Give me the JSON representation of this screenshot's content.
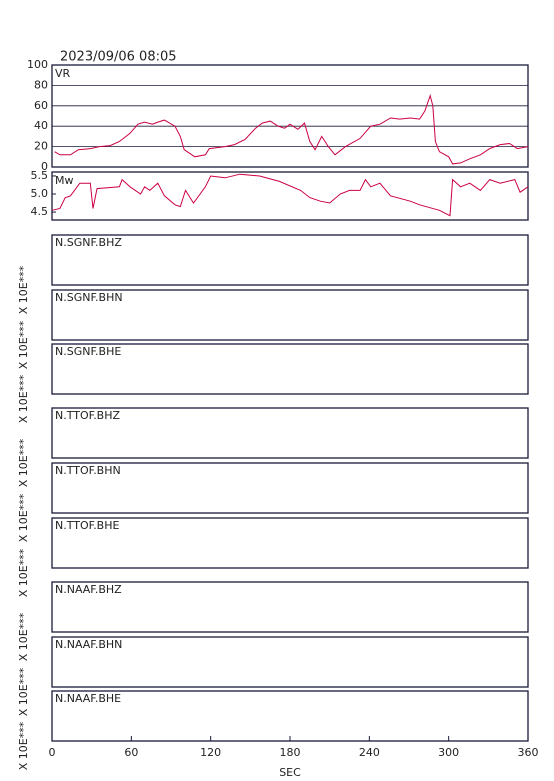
{
  "chart_data": [
    {
      "type": "line",
      "title": "2023/09/06 08:05",
      "y_label": "VR",
      "color": "#cc0044",
      "grid": true,
      "xlim": [
        0,
        360
      ],
      "ylim": [
        0,
        100
      ],
      "yticks": [
        0,
        20,
        40,
        60,
        80,
        100
      ],
      "x": [
        2,
        6,
        14,
        20,
        29,
        36,
        44,
        51,
        59,
        65,
        70,
        76,
        80,
        85,
        93,
        97,
        100,
        108,
        116,
        119,
        131,
        138,
        146,
        154,
        159,
        165,
        171,
        176,
        180,
        186,
        191,
        195,
        199,
        204,
        209,
        214,
        222,
        233,
        241,
        248,
        256,
        263,
        271,
        278,
        282,
        286,
        288,
        290,
        293,
        300,
        303,
        309,
        316,
        324,
        331,
        339,
        346,
        352,
        360
      ],
      "values": [
        15,
        12,
        12,
        17,
        18,
        20,
        21,
        25,
        33,
        42,
        44,
        42,
        44,
        46,
        40,
        30,
        17,
        10,
        12,
        18,
        20,
        22,
        27,
        38,
        43,
        45,
        40,
        38,
        42,
        37,
        43,
        25,
        17,
        30,
        20,
        12,
        20,
        28,
        40,
        42,
        48,
        47,
        48,
        47,
        55,
        70,
        60,
        25,
        15,
        10,
        3,
        4,
        8,
        12,
        18,
        22,
        23,
        18,
        20
      ]
    },
    {
      "type": "line",
      "y_label": "Mw",
      "color": "#cc0044",
      "grid": false,
      "xlim": [
        0,
        360
      ],
      "ylim": [
        4.28,
        5.61
      ],
      "yticks": [
        4.5,
        {
          "value": 5,
          "label": "5.0"
        },
        5.5
      ],
      "x": [
        0,
        6,
        10,
        14,
        21,
        29,
        31,
        34,
        51,
        53,
        59,
        67,
        70,
        74,
        80,
        85,
        93,
        97,
        101,
        107,
        116,
        120,
        131,
        142,
        157,
        172,
        188,
        195,
        203,
        210,
        218,
        225,
        233,
        237,
        241,
        248,
        256,
        271,
        278,
        293,
        301,
        303,
        309,
        316,
        324,
        331,
        339,
        350,
        354,
        360
      ],
      "values": [
        4.55,
        4.6,
        4.9,
        4.95,
        5.3,
        5.3,
        4.6,
        5.15,
        5.2,
        5.4,
        5.2,
        5.0,
        5.2,
        5.1,
        5.3,
        4.95,
        4.7,
        4.65,
        5.1,
        4.75,
        5.2,
        5.5,
        5.45,
        5.55,
        5.5,
        5.35,
        5.1,
        4.9,
        4.8,
        4.75,
        5.0,
        5.1,
        5.1,
        5.4,
        5.2,
        5.3,
        4.95,
        4.8,
        4.7,
        4.55,
        4.4,
        5.4,
        5.2,
        5.3,
        5.1,
        5.4,
        5.3,
        5.4,
        5.05,
        5.2
      ]
    },
    {
      "type": "trace",
      "label": "N.SGNF.BHZ",
      "y_label": "X 10E***"
    },
    {
      "type": "trace",
      "label": "N.SGNF.BHN",
      "y_label": "X 10E***"
    },
    {
      "type": "trace",
      "label": "N.SGNF.BHE",
      "y_label": "X 10E***"
    },
    {
      "type": "trace",
      "label": "N.TTOF.BHZ",
      "y_label": "X 10E***"
    },
    {
      "type": "trace",
      "label": "N.TTOF.BHN",
      "y_label": "X 10E***"
    },
    {
      "type": "trace",
      "label": "N.TTOF.BHE",
      "y_label": "X 10E***"
    },
    {
      "type": "trace",
      "label": "N.NAAF.BHZ",
      "y_label": "X 10E***"
    },
    {
      "type": "trace",
      "label": "N.NAAF.BHN",
      "y_label": "X 10E***"
    },
    {
      "type": "trace",
      "label": "N.NAAF.BHE",
      "y_label": "X 10E***",
      "xlim": [
        0,
        360
      ],
      "xticks": [
        0,
        60,
        120,
        180,
        240,
        300,
        360
      ],
      "xlabel": "SEC"
    }
  ]
}
